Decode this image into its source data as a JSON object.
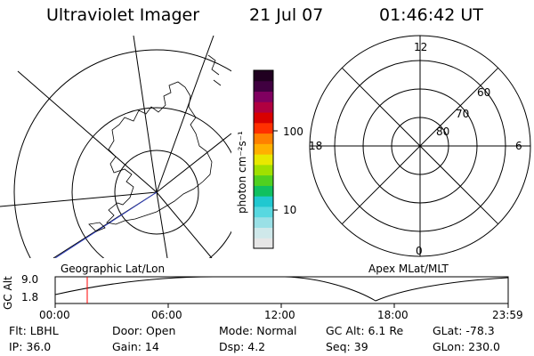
{
  "header": {
    "instrument": "Ultraviolet Imager",
    "date": "21 Jul 07",
    "time": "01:46:42 UT"
  },
  "left_panel": {
    "label": "Geographic Lat/Lon"
  },
  "right_panel": {
    "label": "Apex MLat/MLT",
    "mlt_labels": {
      "top": "12",
      "left": "18",
      "right": "6",
      "bottom": "0"
    },
    "lat_labels": [
      "60",
      "70",
      "80"
    ]
  },
  "colorbar": {
    "unit_label": "photon cm⁻²s⁻¹",
    "tick_100": "100",
    "tick_10": "10",
    "colors": [
      "#e6e6e6",
      "#cfe8ea",
      "#9ae0e6",
      "#58d8e0",
      "#20c8d0",
      "#10c060",
      "#50d020",
      "#a0e000",
      "#e8e800",
      "#ffb000",
      "#ff8000",
      "#ff3000",
      "#d80000",
      "#b00040",
      "#800060",
      "#400040",
      "#200020"
    ]
  },
  "timeline": {
    "y_axis_label": "GC Alt",
    "y_top": "9.0",
    "y_bottom": "1.8",
    "x_ticks": [
      "00:00",
      "06:00",
      "12:00",
      "18:00",
      "23:59"
    ],
    "cursor_color": "#ff0000"
  },
  "info": {
    "flt": "Flt: LBHL",
    "ip": "IP: 36.0",
    "door": "Door: Open",
    "gain": "Gain: 14",
    "mode": "Mode: Normal",
    "dsp": "Dsp:     4.2",
    "gcalt": "GC Alt: 6.1 Re",
    "seq": "Seq: 39",
    "glat": "GLat: -78.3",
    "glon": "GLon: 230.0"
  }
}
